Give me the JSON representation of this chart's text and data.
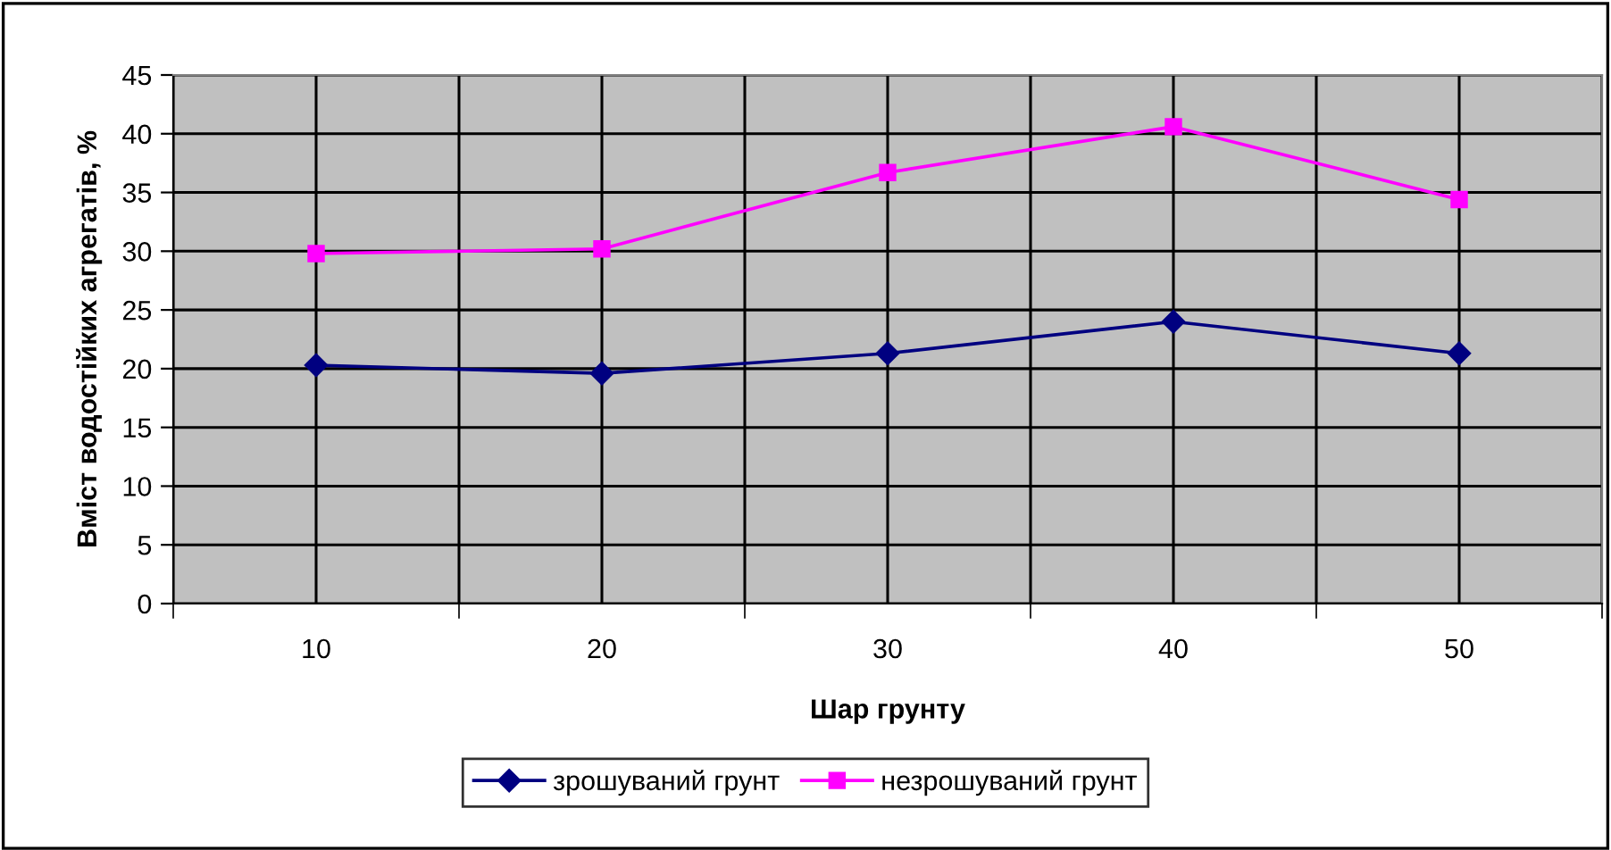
{
  "chart_data": {
    "type": "line",
    "xlabel": "Шар грунту",
    "ylabel": "Вміст водостійких агрегатів, %",
    "categories": [
      "10",
      "20",
      "30",
      "40",
      "50"
    ],
    "series": [
      {
        "name": "зрошуваний грунт",
        "color": "#000080",
        "marker": "diamond",
        "values": [
          20.3,
          19.6,
          21.3,
          24.0,
          21.3
        ]
      },
      {
        "name": "незрошуваний грунт",
        "color": "#ff00ff",
        "marker": "square",
        "values": [
          29.8,
          30.2,
          36.7,
          40.6,
          34.4
        ]
      }
    ],
    "ylim": [
      0,
      45
    ],
    "yticks": [
      0,
      5,
      10,
      15,
      20,
      25,
      30,
      35,
      40,
      45
    ],
    "grid": true,
    "legend": "bottom",
    "line_style": "solid"
  }
}
